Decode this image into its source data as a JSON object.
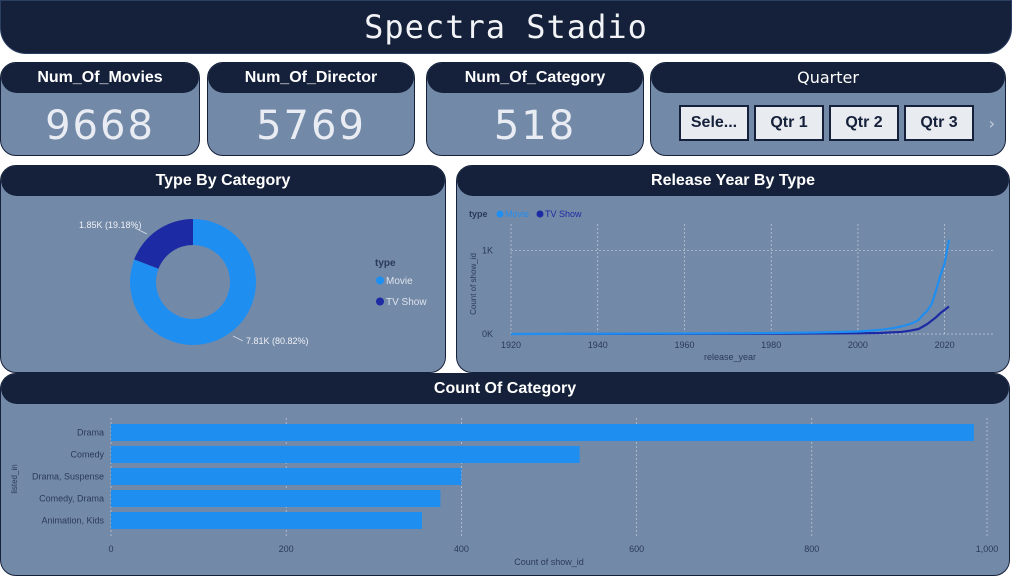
{
  "app_title": "Spectra Stadio",
  "kpis": [
    {
      "label": "Num_Of_Movies",
      "value": "9668"
    },
    {
      "label": "Num_Of_Director",
      "value": "5769"
    },
    {
      "label": "Num_Of_Category",
      "value": "518"
    }
  ],
  "slicer": {
    "title": "Quarter",
    "options": [
      "Sele...",
      "Qtr 1",
      "Qtr 2",
      "Qtr 3"
    ],
    "more_icon": "chevron-right-icon"
  },
  "colors": {
    "movie": "#1f8ef1",
    "tv_show": "#1c2ba3",
    "card_bg": "#7389a8",
    "header_bg": "#15213a"
  },
  "chart_data": [
    {
      "type": "pie",
      "title": "Type By Category",
      "legend_title": "type",
      "legend_position": "right",
      "slices": [
        {
          "name": "Movie",
          "value": 7810,
          "label": "7.81K (80.82%)"
        },
        {
          "name": "TV Show",
          "value": 1850,
          "label": "1.85K (19.18%)"
        }
      ]
    },
    {
      "type": "line",
      "title": "Release Year By Type",
      "legend_title": "type",
      "legend_position": "top-left",
      "xlabel": "release_year",
      "ylabel": "Count of show_id",
      "xlim": [
        1920,
        2021
      ],
      "ylim": [
        0,
        1200
      ],
      "x_ticks": [
        1920,
        1940,
        1960,
        1980,
        2000,
        2020
      ],
      "y_ticks": [
        {
          "v": 0,
          "label": "0K"
        },
        {
          "v": 1000,
          "label": "1K"
        }
      ],
      "series": [
        {
          "name": "Movie",
          "points": [
            [
              1920,
              0
            ],
            [
              1940,
              3
            ],
            [
              1960,
              6
            ],
            [
              1980,
              12
            ],
            [
              1990,
              18
            ],
            [
              2000,
              30
            ],
            [
              2004,
              45
            ],
            [
              2006,
              55
            ],
            [
              2008,
              70
            ],
            [
              2010,
              90
            ],
            [
              2012,
              120
            ],
            [
              2013,
              140
            ],
            [
              2014,
              170
            ],
            [
              2015,
              230
            ],
            [
              2016,
              280
            ],
            [
              2017,
              360
            ],
            [
              2018,
              520
            ],
            [
              2019,
              700
            ],
            [
              2020,
              850
            ],
            [
              2021,
              1130
            ]
          ]
        },
        {
          "name": "TV Show",
          "points": [
            [
              1932,
              1
            ],
            [
              1960,
              2
            ],
            [
              1980,
              4
            ],
            [
              2000,
              8
            ],
            [
              2005,
              12
            ],
            [
              2010,
              25
            ],
            [
              2012,
              40
            ],
            [
              2014,
              60
            ],
            [
              2015,
              90
            ],
            [
              2016,
              120
            ],
            [
              2017,
              160
            ],
            [
              2018,
              200
            ],
            [
              2019,
              250
            ],
            [
              2020,
              290
            ],
            [
              2021,
              330
            ]
          ]
        }
      ],
      "grid": true
    },
    {
      "type": "bar",
      "orientation": "horizontal",
      "title": "Count Of Category",
      "xlabel": "Count of show_id",
      "ylabel": "listed_in",
      "xlim": [
        0,
        1000
      ],
      "x_ticks": [
        {
          "v": 0,
          "label": "0"
        },
        {
          "v": 200,
          "label": "200"
        },
        {
          "v": 400,
          "label": "400"
        },
        {
          "v": 600,
          "label": "600"
        },
        {
          "v": 800,
          "label": "800"
        },
        {
          "v": 1000,
          "label": "1,000"
        }
      ],
      "categories": [
        "Drama",
        "Comedy",
        "Drama, Suspense",
        "Comedy, Drama",
        "Animation, Kids"
      ],
      "values": [
        985,
        535,
        400,
        376,
        355
      ],
      "grid": true
    }
  ]
}
